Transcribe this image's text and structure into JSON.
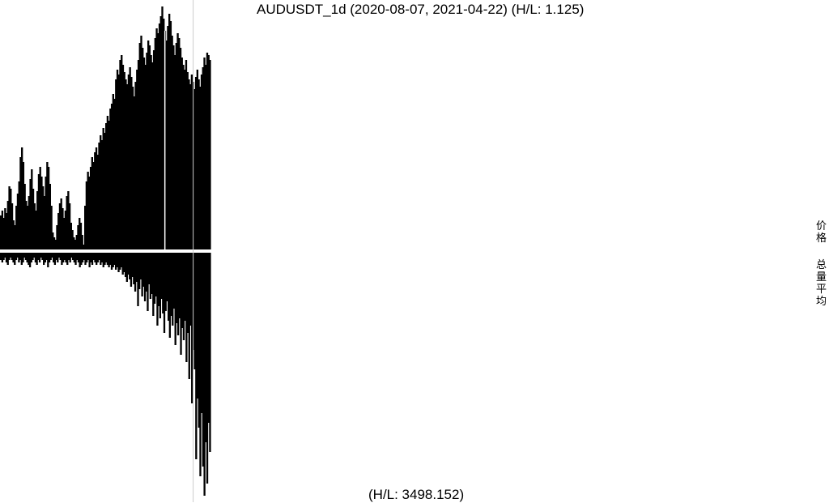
{
  "chart_data": {
    "type": "bar",
    "title": "AUDUSDT_1d (2020-08-07, 2021-04-22) (H/L: 1.125)",
    "footer": "(H/L: 3498.152)",
    "legend": [
      {
        "label": "价格"
      },
      {
        "label": "总量平均"
      }
    ],
    "price_panel": {
      "series": "价格",
      "high_low_ratio": 1.125,
      "values_normalized": [
        0.14,
        0.16,
        0.13,
        0.17,
        0.15,
        0.2,
        0.26,
        0.25,
        0.19,
        0.12,
        0.1,
        0.18,
        0.23,
        0.28,
        0.38,
        0.42,
        0.36,
        0.27,
        0.2,
        0.18,
        0.22,
        0.29,
        0.33,
        0.25,
        0.19,
        0.16,
        0.24,
        0.31,
        0.34,
        0.3,
        0.26,
        0.22,
        0.3,
        0.36,
        0.34,
        0.27,
        0.18,
        0.07,
        0.05,
        0.04,
        0.1,
        0.15,
        0.19,
        0.21,
        0.17,
        0.13,
        0.16,
        0.22,
        0.24,
        0.19,
        0.11,
        0.08,
        0.05,
        0.04,
        0.06,
        0.1,
        0.13,
        0.11,
        0.06,
        0.02,
        0.18,
        0.28,
        0.32,
        0.3,
        0.34,
        0.38,
        0.36,
        0.4,
        0.42,
        0.39,
        0.44,
        0.47,
        0.45,
        0.5,
        0.48,
        0.52,
        0.55,
        0.53,
        0.58,
        0.6,
        0.64,
        0.62,
        0.7,
        0.74,
        0.72,
        0.78,
        0.8,
        0.76,
        0.73,
        0.7,
        0.68,
        0.72,
        0.75,
        0.71,
        0.67,
        0.63,
        0.69,
        0.74,
        0.78,
        0.85,
        0.88,
        0.83,
        0.79,
        0.76,
        0.81,
        0.86,
        0.84,
        0.8,
        0.77,
        0.82,
        0.87,
        0.91,
        0.89,
        0.93,
        0.96,
        1.0,
        0.95,
        0.9,
        0.86,
        0.92,
        0.97,
        0.94,
        0.88,
        0.84,
        0.8,
        0.85,
        0.89,
        0.87,
        0.83,
        0.79,
        0.76,
        0.74,
        0.78,
        0.73,
        0.7,
        0.68,
        0.72,
        0.69,
        0.66,
        0.71,
        0.74,
        0.7,
        0.67,
        0.72,
        0.75,
        0.79,
        0.76,
        0.81,
        0.8,
        0.78
      ],
      "marker_index": 117
    },
    "volume_panel": {
      "series": "总量平均",
      "high_low_ratio": 3498.152,
      "values_normalized": [
        0.03,
        0.04,
        0.03,
        0.02,
        0.04,
        0.05,
        0.03,
        0.02,
        0.03,
        0.04,
        0.05,
        0.03,
        0.02,
        0.04,
        0.03,
        0.05,
        0.04,
        0.02,
        0.03,
        0.04,
        0.05,
        0.06,
        0.04,
        0.03,
        0.02,
        0.04,
        0.05,
        0.03,
        0.04,
        0.02,
        0.03,
        0.05,
        0.04,
        0.03,
        0.06,
        0.04,
        0.03,
        0.02,
        0.04,
        0.05,
        0.03,
        0.04,
        0.02,
        0.03,
        0.05,
        0.04,
        0.03,
        0.04,
        0.05,
        0.03,
        0.04,
        0.02,
        0.03,
        0.04,
        0.05,
        0.03,
        0.04,
        0.06,
        0.05,
        0.04,
        0.03,
        0.05,
        0.04,
        0.03,
        0.06,
        0.04,
        0.05,
        0.03,
        0.04,
        0.05,
        0.04,
        0.03,
        0.05,
        0.04,
        0.06,
        0.05,
        0.04,
        0.05,
        0.06,
        0.05,
        0.07,
        0.06,
        0.05,
        0.07,
        0.06,
        0.08,
        0.07,
        0.06,
        0.09,
        0.08,
        0.1,
        0.12,
        0.09,
        0.11,
        0.14,
        0.1,
        0.13,
        0.16,
        0.12,
        0.22,
        0.15,
        0.11,
        0.18,
        0.14,
        0.2,
        0.16,
        0.24,
        0.13,
        0.19,
        0.17,
        0.26,
        0.21,
        0.18,
        0.3,
        0.22,
        0.27,
        0.19,
        0.25,
        0.33,
        0.24,
        0.2,
        0.28,
        0.35,
        0.26,
        0.3,
        0.23,
        0.38,
        0.29,
        0.34,
        0.27,
        0.42,
        0.31,
        0.36,
        0.28,
        0.45,
        0.33,
        0.52,
        0.3,
        0.62,
        0.4,
        0.48,
        0.85,
        0.6,
        0.72,
        0.92,
        0.66,
        0.88,
        1.0,
        0.78,
        0.95,
        0.7,
        0.82
      ],
      "marker_index": 139
    }
  }
}
